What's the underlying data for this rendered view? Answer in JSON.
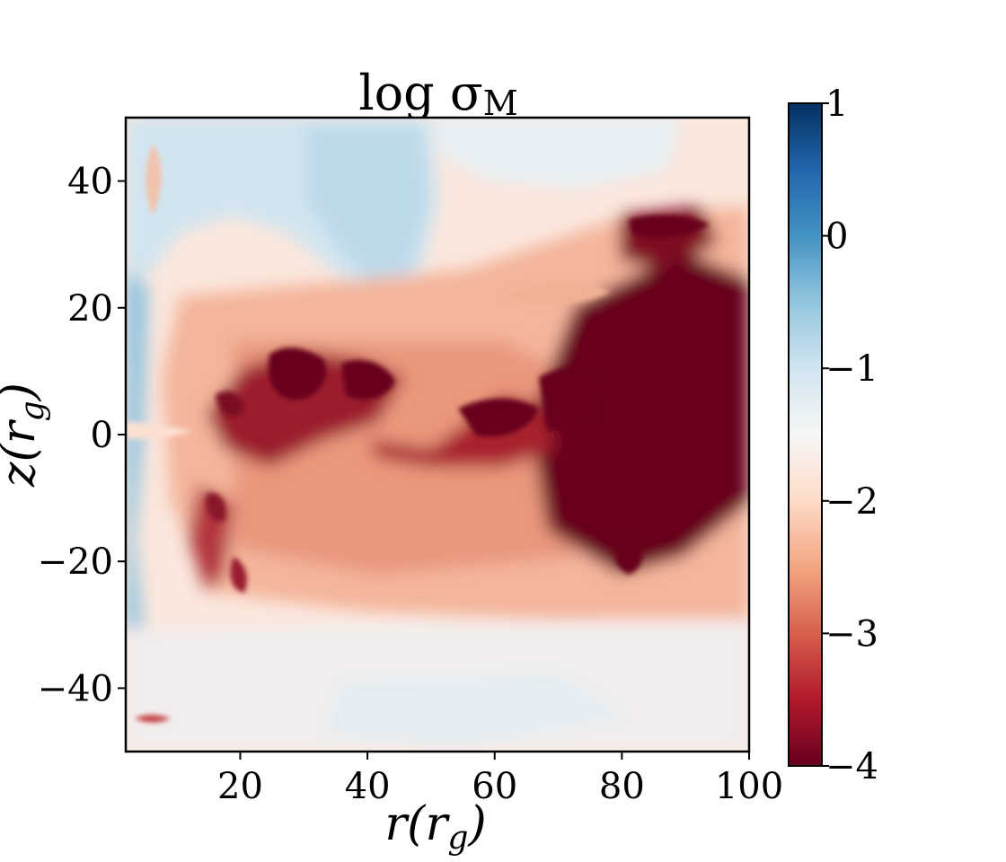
{
  "chart_data": {
    "type": "heatmap",
    "title": "log σ",
    "title_subscript": "M",
    "xlabel": "r(r_g)",
    "ylabel": "z(r_g)",
    "xlabel_parts": {
      "main": "r(r",
      "sub": "g",
      "close": ")"
    },
    "ylabel_parts": {
      "main": "z(r",
      "sub": "g",
      "close": ")"
    },
    "xlim": [
      2,
      100
    ],
    "ylim": [
      -50,
      50
    ],
    "xticks": [
      20,
      40,
      60,
      80,
      100
    ],
    "xtick_labels": [
      "20",
      "40",
      "60",
      "80",
      "100"
    ],
    "yticks": [
      -40,
      -20,
      0,
      20,
      40
    ],
    "ytick_labels": [
      "−40",
      "−20",
      "0",
      "20",
      "40"
    ],
    "colorbar": {
      "range": [
        -4,
        1
      ],
      "ticks": [
        -4,
        -3,
        -2,
        -1,
        0,
        1
      ],
      "tick_labels": [
        "−4",
        "−3",
        "−2",
        "−1",
        "0",
        "1"
      ],
      "colormap": "RdBu",
      "colors": [
        "#67001f",
        "#b2182b",
        "#d6604d",
        "#f4a582",
        "#fddbc7",
        "#f7f7f7",
        "#d1e5f0",
        "#92c5de",
        "#4393c3",
        "#2166ac",
        "#053061"
      ]
    },
    "field_features": [
      {
        "region": "upper-left",
        "x": 35,
        "z": 38,
        "value": -1.2
      },
      {
        "region": "upper-center",
        "x": 45,
        "z": 42,
        "value": -1.1
      },
      {
        "region": "upper-right",
        "x": 70,
        "z": 45,
        "value": -1.6
      },
      {
        "region": "far-left column",
        "x": 3,
        "z": -20,
        "value": -0.6
      },
      {
        "region": "lower band",
        "x": 55,
        "z": -40,
        "value": -1.3
      },
      {
        "region": "central stream",
        "x": 50,
        "z": 5,
        "value": -2.8
      },
      {
        "region": "right core",
        "x": 85,
        "z": 5,
        "value": -4.0
      },
      {
        "region": "upper-right blob",
        "x": 88,
        "z": 33,
        "value": -3.8
      },
      {
        "region": "left turbulent zone",
        "x": 28,
        "z": 0,
        "value": -3.3
      },
      {
        "region": "mid-plane",
        "x": 60,
        "z": -10,
        "value": -2.4
      },
      {
        "region": "lower-left wisps",
        "x": 22,
        "z": -20,
        "value": -3.2
      }
    ]
  }
}
